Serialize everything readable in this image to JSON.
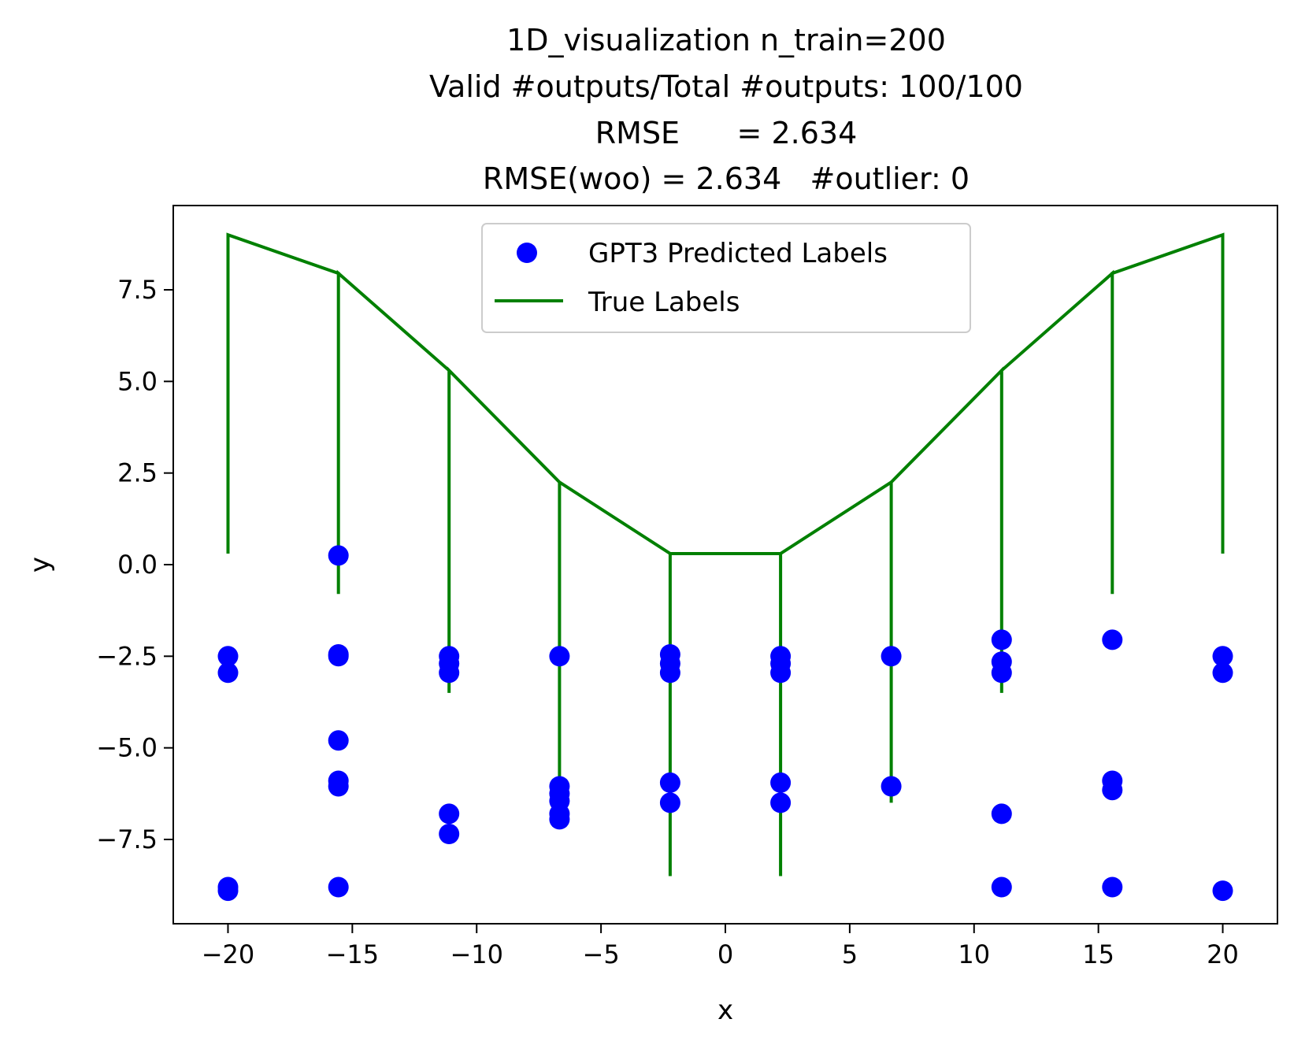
{
  "chart_data": {
    "type": "scatter",
    "title_lines": [
      "1D_visualization  n_train=200",
      "Valid #outputs/Total #outputs: 100/100",
      "RMSE      = 2.634",
      "RMSE(woo) = 2.634   #outlier: 0"
    ],
    "xlabel": "x",
    "ylabel": "y",
    "xlim": [
      -22.2,
      22.2
    ],
    "ylim": [
      -9.8,
      9.8
    ],
    "xticks": [
      -20,
      -15,
      -10,
      -5,
      0,
      5,
      10,
      15,
      20
    ],
    "xtick_labels": [
      "−20",
      "−15",
      "−10",
      "−5",
      "0",
      "5",
      "10",
      "15",
      "20"
    ],
    "yticks": [
      7.5,
      5.0,
      2.5,
      0.0,
      -2.5,
      -5.0,
      -7.5
    ],
    "ytick_labels": [
      "7.5",
      "5.0",
      "2.5",
      "0.0",
      "−2.5",
      "−5.0",
      "−7.5"
    ],
    "grid": false,
    "legend": {
      "position": "upper-center",
      "entries": [
        "GPT3 Predicted Labels",
        "True Labels"
      ]
    },
    "colors": {
      "predicted": "#0000ff",
      "true": "#008000"
    },
    "series": [
      {
        "name": "GPT3 Predicted Labels",
        "kind": "scatter",
        "points": [
          [
            -20,
            -2.5
          ],
          [
            -20,
            -2.95
          ],
          [
            -20,
            -8.8
          ],
          [
            -20,
            -8.9
          ],
          [
            -15.56,
            0.25
          ],
          [
            -15.56,
            -2.45
          ],
          [
            -15.56,
            -2.5
          ],
          [
            -15.56,
            -4.8
          ],
          [
            -15.56,
            -5.9
          ],
          [
            -15.56,
            -6.05
          ],
          [
            -15.56,
            -8.8
          ],
          [
            -11.11,
            -2.5
          ],
          [
            -11.11,
            -2.7
          ],
          [
            -11.11,
            -2.95
          ],
          [
            -11.11,
            -6.8
          ],
          [
            -11.11,
            -7.35
          ],
          [
            -6.67,
            -2.5
          ],
          [
            -6.67,
            -6.05
          ],
          [
            -6.67,
            -6.25
          ],
          [
            -6.67,
            -6.45
          ],
          [
            -6.67,
            -6.8
          ],
          [
            -6.67,
            -6.95
          ],
          [
            -2.22,
            -2.45
          ],
          [
            -2.22,
            -2.7
          ],
          [
            -2.22,
            -2.95
          ],
          [
            -2.22,
            -5.95
          ],
          [
            -2.22,
            -6.5
          ],
          [
            2.22,
            -2.5
          ],
          [
            2.22,
            -2.7
          ],
          [
            2.22,
            -2.95
          ],
          [
            2.22,
            -5.95
          ],
          [
            2.22,
            -6.5
          ],
          [
            6.67,
            -2.5
          ],
          [
            6.67,
            -6.05
          ],
          [
            11.11,
            -2.05
          ],
          [
            11.11,
            -2.65
          ],
          [
            11.11,
            -2.95
          ],
          [
            11.11,
            -6.8
          ],
          [
            11.11,
            -8.8
          ],
          [
            15.56,
            -2.05
          ],
          [
            15.56,
            -5.9
          ],
          [
            15.56,
            -6.15
          ],
          [
            15.56,
            -8.8
          ],
          [
            20,
            -2.5
          ],
          [
            20,
            -2.95
          ],
          [
            20,
            -8.9
          ]
        ]
      },
      {
        "name": "True Labels",
        "kind": "line",
        "points": [
          [
            -20,
            0.3
          ],
          [
            -20,
            9.0
          ],
          [
            -15.56,
            7.95
          ],
          [
            -15.56,
            -0.8
          ],
          [
            -15.56,
            7.95
          ],
          [
            -11.11,
            5.3
          ],
          [
            -11.11,
            -3.5
          ],
          [
            -11.11,
            5.3
          ],
          [
            -6.67,
            2.25
          ],
          [
            -6.67,
            -6.5
          ],
          [
            -6.67,
            2.25
          ],
          [
            -2.22,
            0.3
          ],
          [
            -2.22,
            -8.5
          ],
          [
            -2.22,
            0.3
          ],
          [
            2.22,
            0.3
          ],
          [
            2.22,
            -8.5
          ],
          [
            2.22,
            0.3
          ],
          [
            6.67,
            2.25
          ],
          [
            6.67,
            -6.5
          ],
          [
            6.67,
            2.25
          ],
          [
            11.11,
            5.3
          ],
          [
            11.11,
            -3.5
          ],
          [
            11.11,
            5.3
          ],
          [
            15.56,
            7.95
          ],
          [
            15.56,
            -0.8
          ],
          [
            15.56,
            7.95
          ],
          [
            20,
            9.0
          ],
          [
            20,
            0.3
          ]
        ]
      }
    ]
  }
}
